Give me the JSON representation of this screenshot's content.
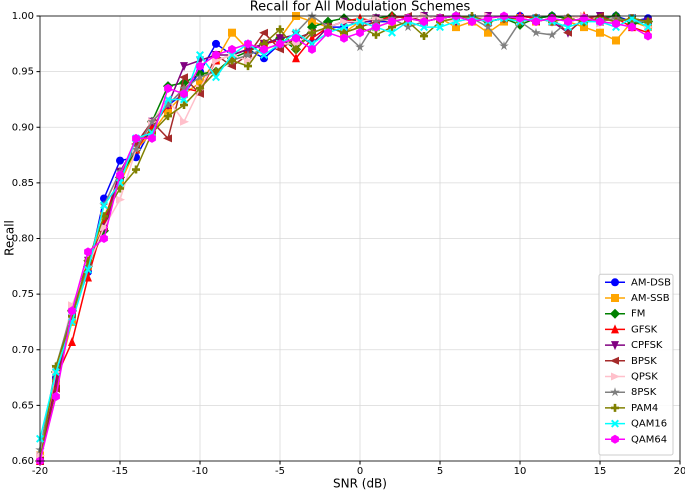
{
  "chart_data": {
    "type": "line",
    "title": "Recall for All Modulation Schemes",
    "x_label": "SNR (dB)",
    "y_label": "Recall",
    "x": [
      -20,
      -19,
      -18,
      -17,
      -16,
      -15,
      -14,
      -13,
      -12,
      -11,
      -10,
      -9,
      -8,
      -7,
      -6,
      -5,
      -4,
      -3,
      -2,
      -1,
      0,
      1,
      2,
      3,
      4,
      5,
      6,
      7,
      8,
      9,
      10,
      11,
      12,
      13,
      14,
      15,
      16,
      17,
      18
    ],
    "xlim": [
      -20,
      20
    ],
    "xticks": [
      -20,
      -15,
      -10,
      -5,
      0,
      5,
      10,
      15,
      20
    ],
    "ylim": [
      0.6,
      1.0
    ],
    "yticks": [
      {
        "value": 0.6,
        "label": "0.60"
      },
      0.65,
      {
        "value": 0.7,
        "label": "0.70"
      },
      0.75,
      {
        "value": 0.8,
        "label": "0.80"
      },
      0.85,
      {
        "value": 0.9,
        "label": "0.90"
      },
      0.95,
      {
        "value": 1.0,
        "label": "1.00"
      }
    ],
    "grid": true,
    "legend_loc": "lower right",
    "series": [
      {
        "name": "AM-DSB",
        "color": "#0000ff",
        "marker": "circle",
        "values": [
          0.6,
          0.675,
          0.73,
          0.77,
          0.836,
          0.87,
          0.873,
          0.9,
          0.92,
          0.93,
          0.95,
          0.975,
          0.965,
          0.97,
          0.962,
          0.975,
          0.98,
          0.985,
          0.99,
          0.99,
          0.995,
          0.995,
          0.995,
          0.998,
          1.0,
          0.998,
          1.0,
          0.998,
          0.995,
          0.998,
          1.0,
          0.998,
          1.0,
          0.998,
          0.995,
          0.998,
          1.0,
          0.995,
          0.998
        ]
      },
      {
        "name": "AM-SSB",
        "color": "#ffa500",
        "marker": "square",
        "values": [
          0.605,
          0.67,
          0.725,
          0.775,
          0.82,
          0.85,
          0.88,
          0.895,
          0.915,
          0.93,
          0.94,
          0.96,
          0.985,
          0.97,
          0.975,
          0.98,
          1.0,
          0.995,
          0.99,
          0.985,
          0.995,
          0.99,
          0.995,
          0.998,
          0.995,
          0.998,
          0.99,
          0.995,
          0.985,
          0.995,
          0.998,
          0.995,
          0.998,
          0.995,
          0.99,
          0.985,
          0.978,
          0.995,
          0.99
        ]
      },
      {
        "name": "FM",
        "color": "#008000",
        "marker": "diamond",
        "values": [
          0.6,
          0.68,
          0.735,
          0.775,
          0.807,
          0.855,
          0.88,
          0.905,
          0.937,
          0.94,
          0.948,
          0.95,
          0.962,
          0.968,
          0.975,
          0.98,
          0.97,
          0.99,
          0.995,
          0.998,
          0.995,
          0.998,
          1.0,
          0.998,
          1.0,
          0.998,
          1.0,
          0.998,
          0.995,
          0.998,
          0.992,
          0.998,
          1.0,
          0.998,
          0.995,
          0.998,
          1.0,
          0.993,
          0.995
        ]
      },
      {
        "name": "GFSK",
        "color": "#ff0000",
        "marker": "triangle-up",
        "values": [
          0.6,
          0.675,
          0.707,
          0.765,
          0.815,
          0.86,
          0.88,
          0.9,
          0.92,
          0.935,
          0.932,
          0.96,
          0.965,
          0.97,
          0.975,
          0.978,
          0.962,
          0.98,
          0.99,
          0.995,
          0.998,
          0.995,
          1.0,
          0.998,
          0.995,
          0.998,
          1.0,
          0.998,
          0.995,
          0.998,
          1.0,
          0.998,
          0.995,
          0.998,
          1.0,
          0.995,
          0.998,
          0.99,
          0.985
        ]
      },
      {
        "name": "CPFSK",
        "color": "#800080",
        "marker": "triangle-down",
        "values": [
          0.6,
          0.67,
          0.735,
          0.78,
          0.81,
          0.86,
          0.885,
          0.905,
          0.92,
          0.955,
          0.96,
          0.965,
          0.965,
          0.97,
          0.975,
          0.98,
          0.983,
          0.975,
          0.99,
          0.995,
          0.993,
          0.998,
          0.995,
          0.998,
          1.0,
          0.998,
          0.995,
          0.998,
          1.0,
          0.998,
          0.995,
          0.998,
          0.995,
          0.985,
          0.998,
          1.0,
          0.995,
          0.998,
          0.995
        ]
      },
      {
        "name": "BPSK",
        "color": "#a52a2a",
        "marker": "triangle-left",
        "values": [
          0.6,
          0.665,
          0.735,
          0.78,
          0.81,
          0.855,
          0.885,
          0.905,
          0.89,
          0.945,
          0.93,
          0.965,
          0.955,
          0.965,
          0.985,
          0.97,
          0.98,
          0.985,
          0.99,
          0.985,
          0.99,
          0.995,
          0.998,
          1.0,
          0.995,
          0.998,
          1.0,
          0.998,
          0.995,
          0.998,
          0.998,
          0.995,
          0.998,
          0.985,
          0.998,
          1.0,
          0.995,
          0.998,
          0.995
        ]
      },
      {
        "name": "QPSK",
        "color": "#ffc0cb",
        "marker": "triangle-right",
        "values": [
          0.605,
          0.68,
          0.74,
          0.775,
          0.81,
          0.835,
          0.88,
          0.905,
          0.925,
          0.905,
          0.935,
          0.96,
          0.965,
          0.96,
          0.97,
          0.975,
          0.975,
          0.985,
          0.99,
          0.995,
          0.995,
          0.998,
          0.995,
          0.998,
          1.0,
          0.998,
          0.995,
          0.998,
          1.0,
          0.998,
          0.995,
          0.998,
          0.995,
          0.998,
          1.0,
          0.993,
          0.995,
          0.998,
          0.99
        ]
      },
      {
        "name": "8PSK",
        "color": "#808080",
        "marker": "star",
        "values": [
          0.61,
          0.685,
          0.735,
          0.775,
          0.83,
          0.86,
          0.88,
          0.905,
          0.92,
          0.935,
          0.945,
          0.95,
          0.96,
          0.965,
          0.97,
          0.975,
          0.985,
          1.0,
          0.99,
          0.985,
          0.972,
          0.995,
          0.998,
          0.99,
          0.995,
          0.998,
          1.0,
          0.998,
          0.99,
          0.973,
          0.995,
          0.985,
          0.983,
          0.995,
          0.998,
          0.995,
          0.998,
          0.995,
          0.995
        ]
      },
      {
        "name": "PAM4",
        "color": "#808000",
        "marker": "plus",
        "values": [
          0.6,
          0.685,
          0.73,
          0.78,
          0.82,
          0.845,
          0.862,
          0.895,
          0.91,
          0.92,
          0.935,
          0.95,
          0.96,
          0.955,
          0.975,
          0.988,
          0.97,
          0.985,
          0.99,
          0.985,
          0.99,
          0.983,
          0.99,
          0.995,
          0.982,
          0.995,
          0.998,
          1.0,
          0.995,
          0.998,
          0.995,
          0.998,
          0.995,
          0.998,
          0.995,
          0.998,
          0.995,
          0.998,
          0.995
        ]
      },
      {
        "name": "QAM16",
        "color": "#00ffff",
        "marker": "x",
        "values": [
          0.62,
          0.68,
          0.725,
          0.772,
          0.83,
          0.85,
          0.89,
          0.895,
          0.925,
          0.925,
          0.965,
          0.945,
          0.965,
          0.975,
          0.965,
          0.975,
          0.985,
          0.975,
          0.985,
          0.99,
          0.995,
          0.99,
          0.985,
          0.995,
          0.99,
          0.99,
          0.995,
          0.998,
          0.995,
          0.998,
          0.995,
          0.998,
          0.995,
          0.99,
          0.995,
          0.995,
          0.99,
          0.998,
          0.99
        ]
      },
      {
        "name": "QAM64",
        "color": "#ff00ff",
        "marker": "hexagon",
        "values": [
          0.6,
          0.658,
          0.735,
          0.788,
          0.8,
          0.857,
          0.89,
          0.89,
          0.935,
          0.93,
          0.955,
          0.965,
          0.97,
          0.975,
          0.97,
          0.975,
          0.98,
          0.97,
          0.985,
          0.98,
          0.985,
          0.99,
          0.995,
          0.998,
          0.995,
          0.998,
          1.0,
          0.995,
          0.998,
          1.0,
          0.998,
          0.995,
          0.998,
          0.995,
          0.998,
          0.995,
          0.993,
          0.99,
          0.982
        ]
      }
    ]
  }
}
